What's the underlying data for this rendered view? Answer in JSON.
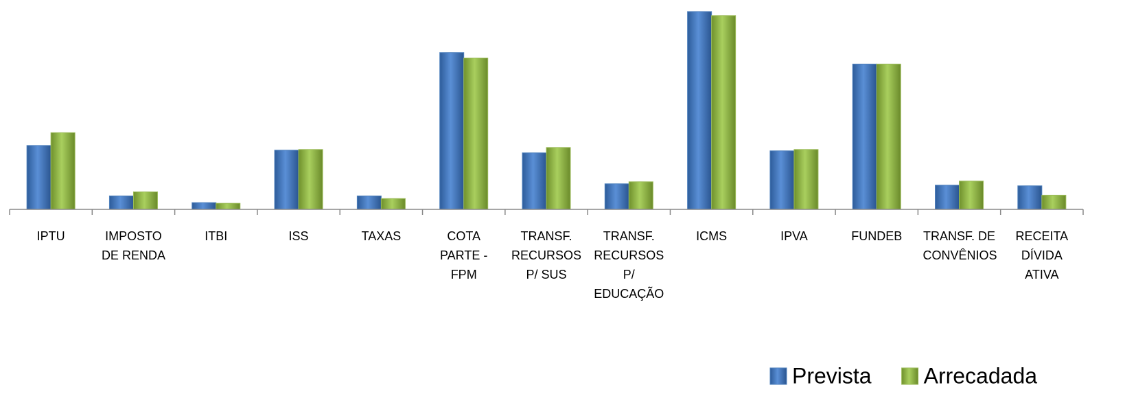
{
  "chart_data": {
    "type": "bar",
    "categories": [
      "IPTU",
      "IMPOSTO DE RENDA",
      "ITBI",
      "ISS",
      "TAXAS",
      "COTA PARTE - FPM",
      "TRANSF. RECURSOS P/ SUS",
      "TRANSF. RECURSOS P/ EDUCAÇÃO",
      "ICMS",
      "IPVA",
      "FUNDEB",
      "TRANSF. DE CONVÊNIOS",
      "RECEITA DÍVIDA ATIVA"
    ],
    "series": [
      {
        "name": "Prevista",
        "color": "#4f81bd",
        "values": [
          95,
          20,
          10,
          88,
          20,
          233,
          84,
          38,
          294,
          87,
          216,
          36,
          35
        ]
      },
      {
        "name": "Arrecadada",
        "color": "#9bbb59",
        "values": [
          114,
          26,
          9,
          89,
          16,
          225,
          92,
          41,
          288,
          89,
          216,
          42,
          21
        ]
      }
    ],
    "ylim": [
      0,
      300
    ],
    "legend": "bottom-right"
  }
}
